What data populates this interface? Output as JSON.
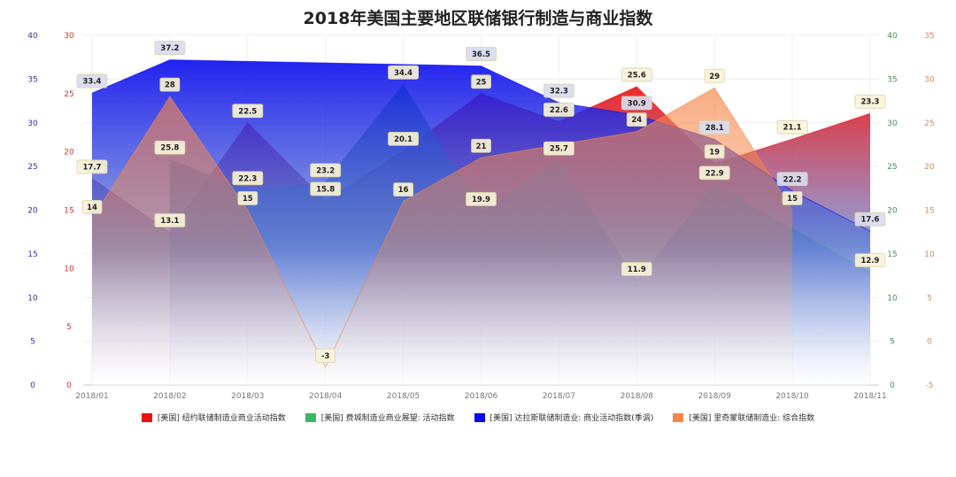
{
  "chart_data": {
    "type": "area",
    "title": "2018年美国主要地区联储银行制造与商业指数",
    "categories": [
      "2018/01",
      "2018/02",
      "2018/03",
      "2018/04",
      "2018/05",
      "2018/06",
      "2018/07",
      "2018/08",
      "2018/09",
      "2018/10",
      "2018/11"
    ],
    "axes": [
      {
        "id": "blue-left",
        "side": "left",
        "range": [
          0,
          40
        ],
        "ticks": [
          "0",
          "5",
          "10",
          "15",
          "20",
          "25",
          "30",
          "35",
          "40"
        ],
        "color": "#3333aa"
      },
      {
        "id": "red-left",
        "side": "left",
        "range": [
          0,
          30
        ],
        "ticks": [
          "0",
          "5",
          "10",
          "15",
          "20",
          "25",
          "30"
        ],
        "color": "#cc3333"
      },
      {
        "id": "green-right",
        "side": "right",
        "range": [
          0,
          40
        ],
        "ticks": [
          "0",
          "5",
          "10",
          "15",
          "20",
          "25",
          "30",
          "35",
          "40"
        ],
        "color": "#4a8a5a"
      },
      {
        "id": "orange-right",
        "side": "right",
        "range": [
          -5,
          35
        ],
        "ticks": [
          "-5",
          "0",
          "5",
          "10",
          "15",
          "20",
          "25",
          "30",
          "35"
        ],
        "color": "#c98a6a"
      }
    ],
    "series": [
      {
        "name": "[美国] 纽约联储制造业商业活动指数",
        "axis": "red-left",
        "color": "#ee1111",
        "values": [
          17.7,
          13.1,
          22.5,
          15.8,
          20.1,
          25,
          22.6,
          25.6,
          19,
          21.1,
          23.3
        ]
      },
      {
        "name": "[美国] 费城制造业商业展望: 活动指数",
        "axis": "green-right",
        "color": "#3cb763",
        "values": [
          null,
          25.8,
          22.3,
          23.2,
          34.4,
          19.9,
          25.7,
          11.9,
          22.9,
          null,
          12.9
        ]
      },
      {
        "name": "[美国] 达拉斯联储制造业: 商业活动指数(季调)",
        "axis": "blue-left",
        "color": "#0a0aee",
        "values": [
          33.4,
          37.2,
          null,
          null,
          null,
          36.5,
          32.3,
          30.9,
          28.1,
          22.2,
          17.6
        ]
      },
      {
        "name": "[美国] 里奇蒙联储制造业: 综合指数",
        "axis": "orange-right",
        "color": "#f5874a",
        "values": [
          14,
          28,
          15,
          -3,
          16,
          21,
          null,
          24,
          29,
          15,
          null
        ]
      }
    ],
    "legend": "bottom",
    "grid": true
  }
}
